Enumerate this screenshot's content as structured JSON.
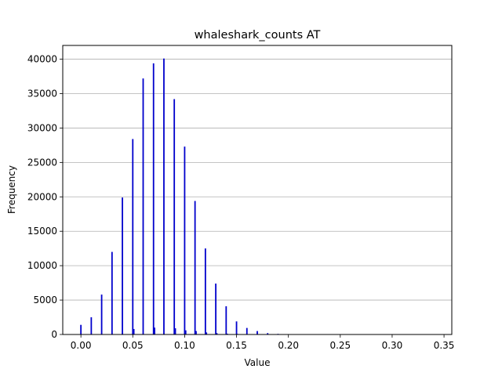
{
  "chart_data": {
    "type": "bar",
    "title": "whaleshark_counts AT",
    "xlabel": "Value",
    "ylabel": "Frequency",
    "xlim": [
      -0.0175,
      0.3575
    ],
    "ylim": [
      0,
      42000
    ],
    "xticks": [
      0.0,
      0.05,
      0.1,
      0.15,
      0.2,
      0.25,
      0.3,
      0.35
    ],
    "xtick_labels": [
      "0.00",
      "0.05",
      "0.10",
      "0.15",
      "0.20",
      "0.25",
      "0.30",
      "0.35"
    ],
    "yticks": [
      0,
      5000,
      10000,
      15000,
      20000,
      25000,
      30000,
      35000,
      40000
    ],
    "ytick_labels": [
      "0",
      "5000",
      "10000",
      "15000",
      "20000",
      "25000",
      "30000",
      "35000",
      "40000"
    ],
    "grid": "y",
    "bar_color": "#0000cc",
    "series": [
      {
        "x": [
          0.0,
          0.01,
          0.02,
          0.03,
          0.04,
          0.05,
          0.06,
          0.07,
          0.08,
          0.09,
          0.1,
          0.11,
          0.12,
          0.13,
          0.14,
          0.15,
          0.16,
          0.17,
          0.18,
          0.19,
          0.2,
          0.051,
          0.071,
          0.091,
          0.101,
          0.111,
          0.121,
          0.131,
          0.141,
          0.151
        ],
        "values": [
          1400,
          2500,
          5800,
          12000,
          19900,
          28400,
          37200,
          39400,
          40100,
          34200,
          27300,
          19400,
          12500,
          7400,
          4100,
          1900,
          950,
          500,
          200,
          90,
          40,
          800,
          1000,
          900,
          600,
          500,
          300,
          200,
          120,
          80
        ]
      }
    ]
  }
}
